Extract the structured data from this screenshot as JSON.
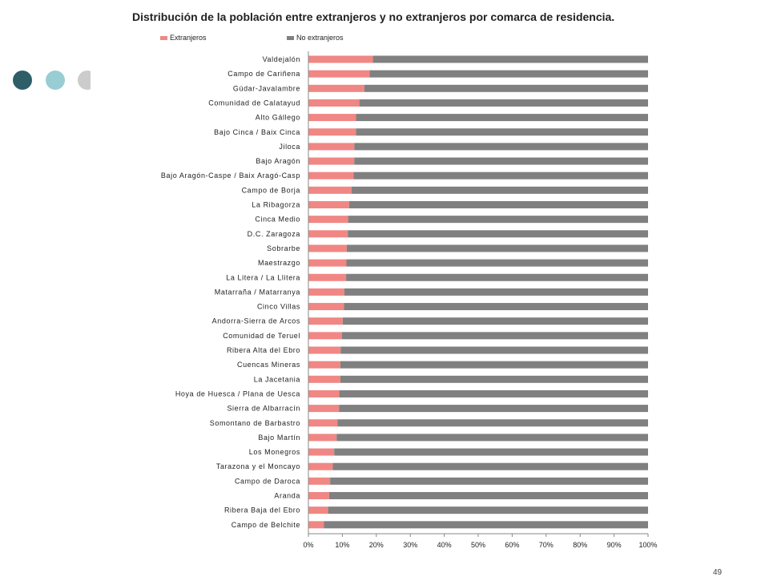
{
  "title": "Distribución de la población entre extranjeros y no extranjeros por comarca de residencia.",
  "page_number": "49",
  "colors": {
    "extranjeros": "#f08784",
    "no_extranjeros": "#808080",
    "dot_dark": "#2e5f68",
    "dot_light": "#98cdd4",
    "dot_gray": "#cccccc"
  },
  "chart_data": {
    "type": "bar",
    "orientation": "horizontal",
    "stacked": true,
    "percent_stacked": true,
    "title": "Distribución de la población entre extranjeros y no extranjeros por comarca de residencia.",
    "legend_position": "top",
    "xlim": [
      0,
      100
    ],
    "x_tick_labels": [
      "0%",
      "10%",
      "20%",
      "30%",
      "40%",
      "50%",
      "60%",
      "70%",
      "80%",
      "90%",
      "100%"
    ],
    "categories": [
      "Valdejalón",
      "Campo de Cariñena",
      "Gúdar-Javalambre",
      "Comunidad de Calatayud",
      "Alto Gállego",
      "Bajo Cinca / Baix Cinca",
      "Jiloca",
      "Bajo Aragón",
      "Bajo Aragón-Caspe / Baix Aragó-Casp",
      "Campo de Borja",
      "La Ribagorza",
      "Cinca Medio",
      "D.C. Zaragoza",
      "Sobrarbe",
      "Maestrazgo",
      "La Litera / La Llitera",
      "Matarraña / Matarranya",
      "Cinco Villas",
      "Andorra-Sierra de Arcos",
      "Comunidad de Teruel",
      "Ribera Alta del Ebro",
      "Cuencas Mineras",
      "La Jacetania",
      "Hoya de Huesca / Plana de Uesca",
      "Sierra de Albarracín",
      "Somontano de Barbastro",
      "Bajo Martín",
      "Los Monegros",
      "Tarazona y el Moncayo",
      "Campo de Daroca",
      "Aranda",
      "Ribera Baja del Ebro",
      "Campo de Belchite"
    ],
    "series": [
      {
        "name": "Extranjeros",
        "values": [
          19,
          18,
          16.5,
          15,
          14,
          14,
          13.5,
          13.5,
          13.3,
          12.7,
          12,
          11.7,
          11.6,
          11.3,
          11.2,
          11.1,
          10.6,
          10.5,
          10.1,
          9.9,
          9.5,
          9.4,
          9.4,
          9.1,
          9,
          8.6,
          8.3,
          7.6,
          7.2,
          6.4,
          6.1,
          5.8,
          4.6
        ]
      },
      {
        "name": "No extranjeros",
        "values": [
          81,
          82,
          83.5,
          85,
          86,
          86,
          86.5,
          86.5,
          86.7,
          87.3,
          88,
          88.3,
          88.4,
          88.7,
          88.8,
          88.9,
          89.4,
          89.5,
          89.9,
          90.1,
          90.5,
          90.6,
          90.6,
          90.9,
          91,
          91.4,
          91.7,
          92.4,
          92.8,
          93.6,
          93.9,
          94.2,
          95.4
        ]
      }
    ]
  }
}
